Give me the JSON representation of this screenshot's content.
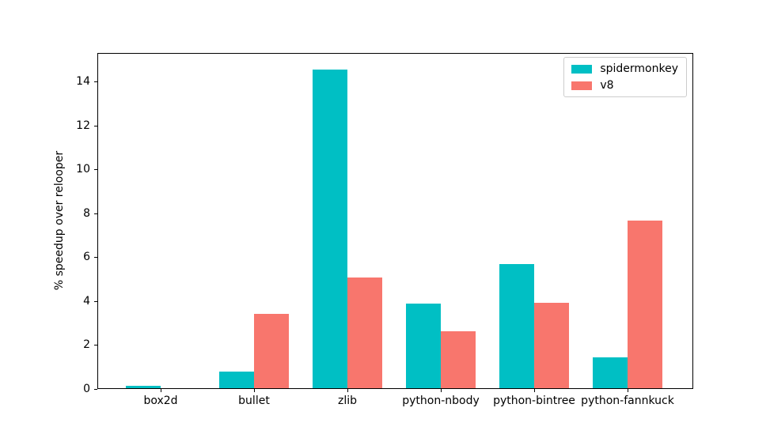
{
  "chart_data": {
    "type": "bar",
    "categories": [
      "box2d",
      "bullet",
      "zlib",
      "python-nbody",
      "python-bintree",
      "python-fannkuck"
    ],
    "series": [
      {
        "name": "spidermonkey",
        "color": "#00BFC4",
        "values": [
          0.1,
          0.75,
          14.5,
          3.85,
          5.65,
          1.4
        ]
      },
      {
        "name": "v8",
        "color": "#F8766D",
        "values": [
          0,
          3.4,
          5.05,
          2.6,
          3.9,
          7.65
        ]
      }
    ],
    "title": "",
    "xlabel": "",
    "ylabel": "% speedup over relooper",
    "yticks": [
      0,
      2,
      4,
      6,
      8,
      10,
      12,
      14
    ],
    "ylim": [
      0,
      15.3
    ],
    "legend_position": "upper right",
    "grid": false,
    "axis_color": "#000000",
    "background_color": "#ffffff"
  }
}
